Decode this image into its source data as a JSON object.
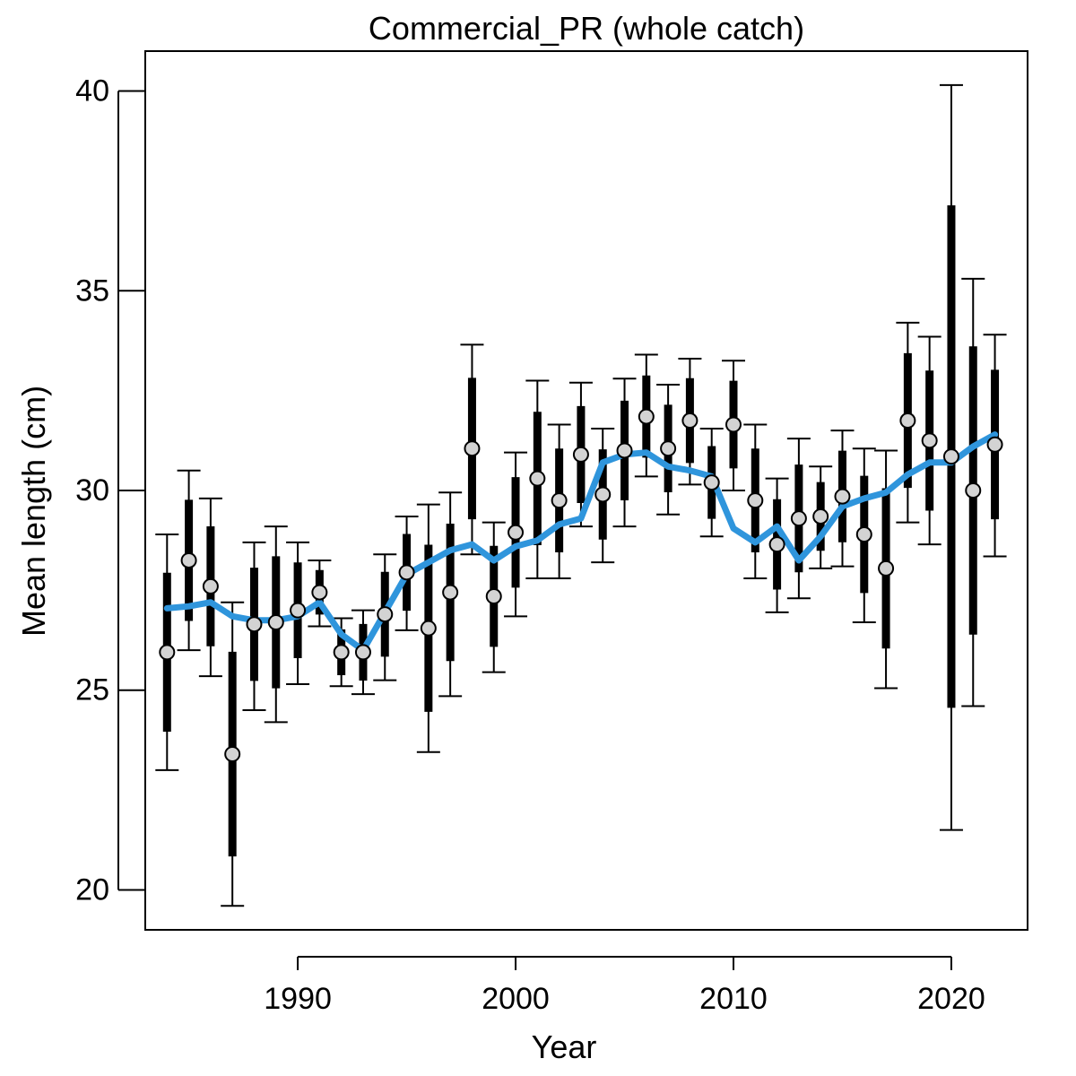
{
  "chart_data": {
    "type": "scatter",
    "title": "Commercial_PR (whole catch)",
    "xlabel": "Year",
    "ylabel": "Mean length (cm)",
    "xlim": [
      1983,
      2023.5
    ],
    "ylim": [
      19,
      41
    ],
    "x_ticks": [
      1990,
      2000,
      2010,
      2020
    ],
    "y_ticks": [
      20,
      25,
      30,
      35,
      40
    ],
    "grid": false,
    "legend": "none",
    "colors": {
      "point_fill": "#d3d3d3",
      "interval": "#000000",
      "fit_line": "#2f95dc"
    },
    "series": [
      {
        "kind": "observed",
        "x": [
          1984,
          1985,
          1986,
          1987,
          1988,
          1989,
          1990,
          1991,
          1992,
          1993,
          1994,
          1995,
          1996,
          1997,
          1998,
          1999,
          2000,
          2001,
          2002,
          2003,
          2004,
          2005,
          2006,
          2007,
          2008,
          2009,
          2010,
          2011,
          2012,
          2013,
          2014,
          2015,
          2016,
          2017,
          2018,
          2019,
          2020,
          2021,
          2022
        ],
        "y": [
          25.95,
          28.25,
          27.6,
          23.4,
          26.65,
          26.7,
          27.0,
          27.45,
          25.95,
          25.95,
          26.9,
          27.95,
          26.55,
          27.45,
          31.05,
          27.35,
          28.95,
          30.3,
          29.75,
          30.9,
          29.9,
          31.0,
          31.85,
          31.05,
          31.75,
          30.2,
          31.65,
          29.75,
          28.65,
          29.3,
          29.35,
          29.85,
          28.9,
          28.05,
          31.75,
          31.25,
          30.85,
          30.0,
          31.15
        ],
        "outer_low": [
          23.0,
          26.0,
          25.35,
          19.6,
          24.5,
          24.2,
          25.15,
          26.6,
          25.1,
          24.9,
          25.25,
          26.5,
          23.45,
          24.85,
          28.4,
          25.45,
          26.85,
          27.8,
          27.8,
          29.1,
          28.2,
          29.1,
          30.35,
          29.4,
          30.15,
          28.85,
          30.0,
          27.8,
          26.95,
          27.3,
          28.05,
          28.1,
          26.7,
          25.05,
          29.2,
          28.65,
          21.5,
          24.6,
          28.35
        ],
        "outer_high": [
          28.9,
          30.5,
          29.8,
          27.2,
          28.7,
          29.1,
          28.7,
          28.25,
          26.8,
          27.0,
          28.4,
          29.35,
          29.65,
          29.95,
          33.65,
          29.2,
          30.95,
          32.75,
          31.65,
          32.7,
          31.55,
          32.8,
          33.4,
          32.65,
          33.3,
          31.55,
          33.25,
          31.65,
          30.3,
          31.3,
          30.6,
          31.5,
          31.05,
          31.0,
          34.2,
          33.85,
          40.15,
          35.3,
          33.9
        ]
      },
      {
        "kind": "expected",
        "x": [
          1984,
          1985,
          1986,
          1987,
          1988,
          1989,
          1990,
          1991,
          1992,
          1993,
          1994,
          1995,
          1996,
          1997,
          1998,
          1999,
          2000,
          2001,
          2002,
          2003,
          2004,
          2005,
          2006,
          2007,
          2008,
          2009,
          2010,
          2011,
          2012,
          2013,
          2014,
          2015,
          2016,
          2017,
          2018,
          2019,
          2020,
          2021,
          2022
        ],
        "y": [
          27.05,
          27.1,
          27.2,
          26.85,
          26.75,
          26.75,
          26.85,
          27.2,
          26.4,
          26.0,
          26.95,
          27.9,
          28.2,
          28.5,
          28.65,
          28.25,
          28.6,
          28.75,
          29.15,
          29.3,
          30.7,
          30.9,
          30.95,
          30.6,
          30.5,
          30.35,
          29.05,
          28.7,
          29.1,
          28.25,
          28.85,
          29.6,
          29.8,
          29.95,
          30.4,
          30.7,
          30.7,
          31.1,
          31.4
        ]
      }
    ]
  }
}
